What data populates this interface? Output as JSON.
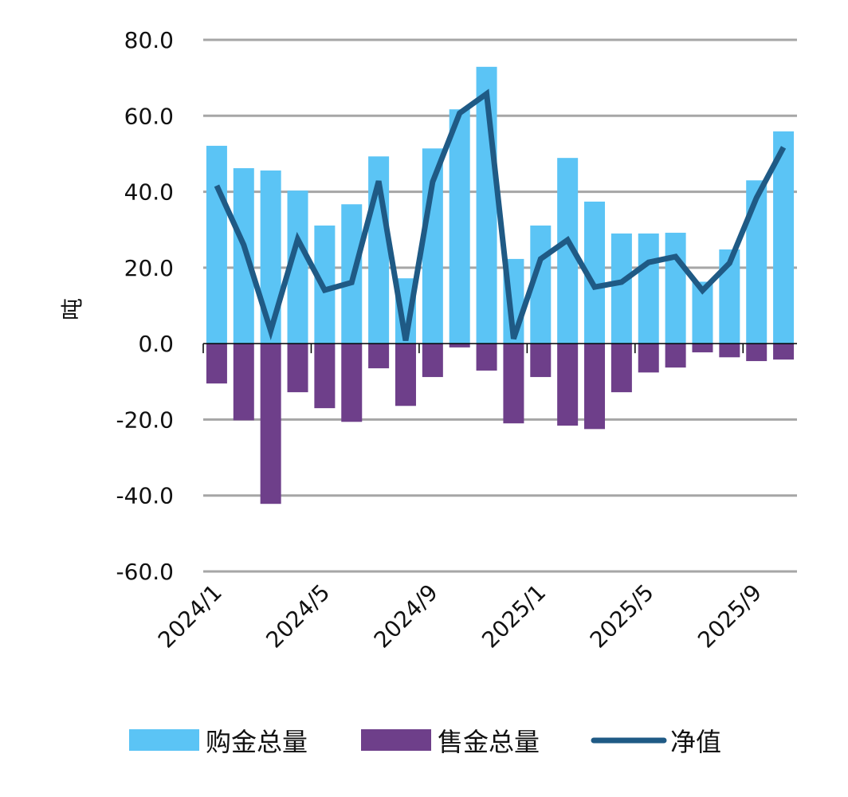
{
  "chart_data": {
    "type": "bar+line",
    "ylabel": "吨",
    "ylim": [
      -60,
      80
    ],
    "yticks": [
      "80.0",
      "60.0",
      "40.0",
      "20.0",
      "0.0",
      "-20.0",
      "-40.0",
      "-60.0"
    ],
    "grid": true,
    "legend_placement": "bottom",
    "categories": [
      "2024/1",
      "2024/2",
      "2024/3",
      "2024/4",
      "2024/5",
      "2024/6",
      "2024/7",
      "2024/8",
      "2024/9",
      "2024/10",
      "2024/11",
      "2024/12",
      "2025/1",
      "2025/2",
      "2025/3",
      "2025/4",
      "2025/5",
      "2025/6",
      "2025/7",
      "2025/8",
      "2025/9",
      "2025/10"
    ],
    "xtick_labels": [
      "2024/1",
      "2024/5",
      "2024/9",
      "2025/1",
      "2025/5",
      "2025/9"
    ],
    "series": [
      {
        "name": "购金总量",
        "type": "bar",
        "color": "#5BC4F5",
        "values": [
          52.1,
          46.2,
          45.6,
          40.3,
          31.1,
          36.7,
          49.3,
          17.2,
          51.4,
          61.7,
          72.9,
          22.3,
          31.1,
          48.9,
          37.4,
          29.0,
          29.0,
          29.2,
          16.3,
          24.8,
          43.0,
          55.9
        ]
      },
      {
        "name": "售金总量",
        "type": "bar",
        "color": "#6E3F8A",
        "values": [
          -10.5,
          -20.2,
          -42.2,
          -12.8,
          -17.0,
          -20.6,
          -6.5,
          -16.4,
          -8.8,
          -1.0,
          -7.1,
          -21.0,
          -8.8,
          -21.6,
          -22.5,
          -12.8,
          -7.6,
          -6.3,
          -2.3,
          -3.6,
          -4.6,
          -4.2
        ]
      },
      {
        "name": "净值",
        "type": "line",
        "color": "#1F5A85",
        "values": [
          41.6,
          26.0,
          3.4,
          27.5,
          14.1,
          16.1,
          42.8,
          0.8,
          42.6,
          60.7,
          65.8,
          1.3,
          22.3,
          27.3,
          14.9,
          16.2,
          21.4,
          22.9,
          14.0,
          21.2,
          38.4,
          51.7
        ]
      }
    ]
  }
}
